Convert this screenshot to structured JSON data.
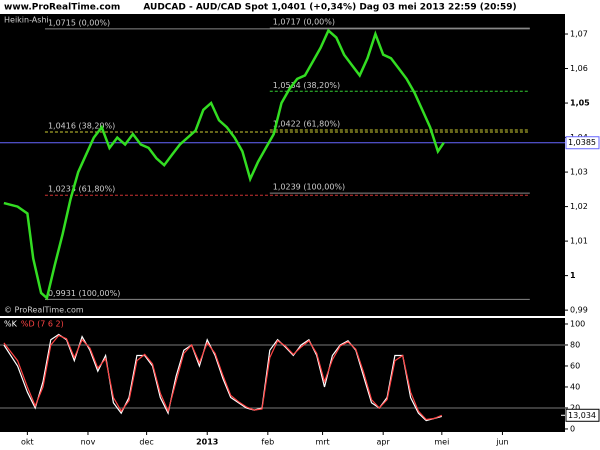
{
  "header": {
    "site": "www.ProRealTime.com",
    "title": "AUDCAD - AUD/CAD Spot   1,0401 (+0,34%)   Dag  03 mei 2013 22:59 (20:59)"
  },
  "chart_data": [
    {
      "type": "line",
      "watermark": "© ProRealTime.com",
      "xlim": [
        -14,
        275
      ],
      "ylim": [
        0.9883,
        1.0758
      ],
      "yticks": [
        {
          "value": 0.99,
          "label": "0,99"
        },
        {
          "value": 1,
          "label": "1"
        },
        {
          "value": 1.01,
          "label": "1,01"
        },
        {
          "value": 1.02,
          "label": "1,02"
        },
        {
          "value": 1.03,
          "label": "1,03"
        },
        {
          "value": 1.04,
          "label": "1,04"
        },
        {
          "value": 1.05,
          "label": "1,05"
        },
        {
          "value": 1.06,
          "label": "1,06"
        },
        {
          "value": 1.07,
          "label": "1,07"
        }
      ],
      "x": [
        -12,
        -5,
        0,
        3,
        7,
        10,
        14,
        18,
        22,
        26,
        30,
        34,
        38,
        42,
        46,
        50,
        54,
        58,
        62,
        66,
        70,
        74,
        78,
        82,
        86,
        90,
        94,
        98,
        102,
        106,
        110,
        114,
        118,
        122,
        126,
        130,
        134,
        138,
        142,
        146,
        150,
        154,
        158,
        162,
        166,
        170,
        174,
        178,
        182,
        186,
        190,
        194,
        198,
        202,
        206,
        210,
        213
      ],
      "series": [
        {
          "name": "Heikin-Ashi",
          "color": "#33dd22",
          "values": [
            1.021,
            1.02,
            1.018,
            1.005,
            0.995,
            0.9935,
            1.003,
            1.012,
            1.022,
            1.03,
            1.035,
            1.04,
            1.043,
            1.037,
            1.04,
            1.038,
            1.041,
            1.038,
            1.037,
            1.034,
            1.032,
            1.035,
            1.038,
            1.04,
            1.042,
            1.048,
            1.05,
            1.045,
            1.043,
            1.04,
            1.036,
            1.028,
            1.033,
            1.037,
            1.041,
            1.05,
            1.054,
            1.057,
            1.058,
            1.062,
            1.066,
            1.071,
            1.069,
            1.064,
            1.061,
            1.058,
            1.063,
            1.07,
            1.064,
            1.063,
            1.06,
            1.057,
            1.053,
            1.048,
            1.043,
            1.036,
            1.0385
          ]
        }
      ],
      "last": {
        "value": 1.0385,
        "label": "1,0385",
        "color": "#6666ff"
      },
      "levels": [
        {
          "value": 1.0715,
          "label": "1,0715 (0,00%)",
          "color": "#888888",
          "dashed": false,
          "start": 9
        },
        {
          "value": 1.0416,
          "label": "1,0416 (38,20%)",
          "color": "#cccc33",
          "dashed": true,
          "start": 9
        },
        {
          "value": 1.0233,
          "label": "1,0233 (61,80%)",
          "color": "#cc3333",
          "dashed": true,
          "start": 9
        },
        {
          "value": 0.9931,
          "label": "0,9931 (100,00%)",
          "color": "#888888",
          "dashed": false,
          "start": 9
        },
        {
          "value": 1.0717,
          "label": "1,0717 (0,00%)",
          "color": "#888888",
          "dashed": false,
          "start": 124
        },
        {
          "value": 1.0534,
          "label": "1,0534 (38,20%)",
          "color": "#33cc33",
          "dashed": true,
          "start": 124
        },
        {
          "value": 1.0422,
          "label": "1,0422 (61,80%)",
          "color": "#cccc33",
          "dashed": true,
          "start": 124
        },
        {
          "value": 1.0239,
          "label": "1,0239 (100,00%)",
          "color": "#888888",
          "dashed": false,
          "start": 124
        }
      ],
      "levels_end": 257
    },
    {
      "type": "line",
      "xlim": [
        -14,
        275
      ],
      "ylim": [
        -2.9,
        105.7
      ],
      "xticks": [
        {
          "value": 0,
          "label": "okt"
        },
        {
          "value": 31,
          "label": "nov"
        },
        {
          "value": 61,
          "label": "dec"
        },
        {
          "value": 92,
          "label": "2013"
        },
        {
          "value": 123,
          "label": "feb"
        },
        {
          "value": 151,
          "label": "mrt"
        },
        {
          "value": 182,
          "label": "apr"
        },
        {
          "value": 212,
          "label": "mei"
        },
        {
          "value": 243,
          "label": "jun"
        }
      ],
      "yticks": [
        0,
        20,
        40,
        60,
        80,
        100
      ],
      "levels": [
        20,
        80
      ],
      "x": [
        -12,
        -5,
        0,
        4,
        8,
        12,
        16,
        20,
        24,
        28,
        32,
        36,
        40,
        44,
        48,
        52,
        56,
        60,
        64,
        68,
        72,
        76,
        80,
        84,
        88,
        92,
        96,
        100,
        104,
        108,
        112,
        116,
        120,
        124,
        128,
        132,
        136,
        140,
        144,
        148,
        152,
        156,
        160,
        164,
        168,
        172,
        176,
        180,
        184,
        188,
        192,
        196,
        200,
        204,
        208,
        212
      ],
      "series": [
        {
          "name": "%K",
          "color": "#ffffff",
          "values": [
            80,
            60,
            35,
            20,
            45,
            85,
            90,
            85,
            65,
            88,
            75,
            55,
            70,
            25,
            15,
            30,
            70,
            70,
            60,
            30,
            15,
            50,
            75,
            80,
            60,
            85,
            70,
            48,
            30,
            25,
            20,
            18,
            20,
            75,
            85,
            78,
            70,
            80,
            85,
            70,
            40,
            70,
            80,
            84,
            75,
            50,
            25,
            20,
            30,
            70,
            70,
            30,
            15,
            8,
            10,
            12
          ]
        },
        {
          "name": "%D (7 6 2)",
          "color": "#ff4444",
          "values": [
            82,
            65,
            40,
            22,
            40,
            80,
            89,
            86,
            68,
            85,
            77,
            58,
            67,
            30,
            17,
            27,
            65,
            71,
            62,
            34,
            17,
            45,
            72,
            80,
            63,
            82,
            72,
            51,
            32,
            26,
            21,
            18,
            19,
            68,
            84,
            79,
            71,
            78,
            84,
            72,
            45,
            66,
            79,
            83,
            76,
            54,
            28,
            20,
            28,
            65,
            70,
            35,
            17,
            9,
            10,
            13
          ]
        }
      ],
      "last": {
        "value": 13.034,
        "label": "13,034",
        "color": "#000000"
      }
    }
  ]
}
